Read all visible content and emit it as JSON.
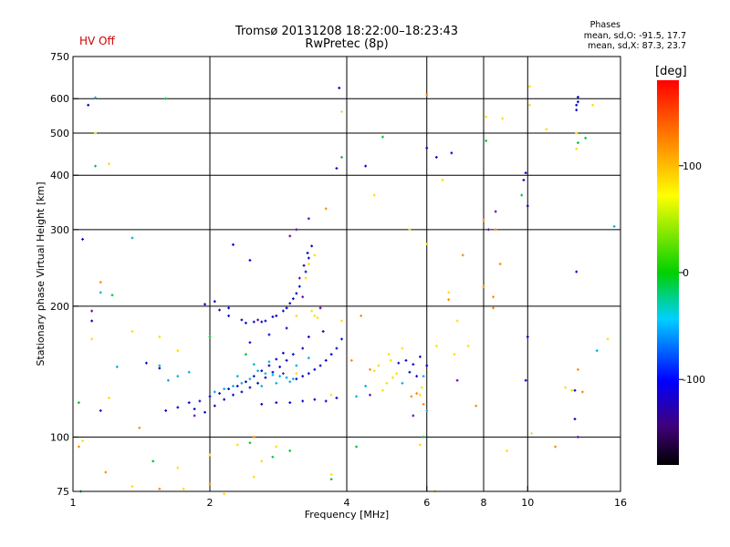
{
  "header": {
    "title_line1": "Tromsø 20131208 18:22:00–18:23:43",
    "title_line2": "RwPretec (8p)",
    "hv_status": "HV Off",
    "hv_color": "#d00000",
    "stats_heading": "Phases",
    "stats_line1": "mean, sd,O: -91.5, 17.7",
    "stats_line2": "mean, sd,X:  87.3, 23.7"
  },
  "colorbar": {
    "title": "[deg]",
    "ticks": [
      "100",
      "0",
      "-100"
    ],
    "tick_values": [
      100,
      0,
      -100
    ],
    "range": [
      -180,
      180
    ]
  },
  "chart_data": {
    "type": "scatter",
    "xlabel": "Frequency [MHz]",
    "ylabel": "Stationary phase Virtual Height [km]",
    "x_scale": "log",
    "y_scale": "log",
    "xlim": [
      1,
      16
    ],
    "ylim": [
      75,
      750
    ],
    "x_ticks": [
      "1",
      "2",
      "4",
      "6",
      "8",
      "10",
      "16"
    ],
    "x_tick_values": [
      1,
      2,
      4,
      6,
      8,
      10,
      16
    ],
    "y_ticks": [
      "75",
      "100",
      "200",
      "300",
      "400",
      "500",
      "600",
      "750"
    ],
    "y_tick_values": [
      75,
      100,
      200,
      300,
      400,
      500,
      600,
      750
    ],
    "grid": true,
    "series": [
      {
        "points": [
          [
            1.85,
            116
          ],
          [
            1.95,
            114
          ],
          [
            2.05,
            118
          ],
          [
            2.15,
            122
          ],
          [
            2.25,
            125
          ],
          [
            2.35,
            127
          ],
          [
            2.45,
            130
          ],
          [
            2.55,
            133
          ],
          [
            2.65,
            137
          ],
          [
            2.75,
            141
          ],
          [
            2.85,
            145
          ],
          [
            2.95,
            150
          ],
          [
            3.05,
            155
          ],
          [
            3.2,
            160
          ],
          [
            1.6,
            115
          ],
          [
            1.7,
            117
          ],
          [
            1.8,
            120
          ],
          [
            1.9,
            121
          ],
          [
            2.0,
            124
          ],
          [
            2.1,
            126
          ],
          [
            2.2,
            129
          ],
          [
            2.3,
            131
          ],
          [
            2.4,
            134
          ],
          [
            2.5,
            138
          ],
          [
            2.6,
            142
          ],
          [
            2.7,
            146
          ],
          [
            2.8,
            151
          ],
          [
            2.9,
            156
          ],
          [
            2.05,
            205
          ],
          [
            2.1,
            196
          ],
          [
            2.2,
            190
          ],
          [
            2.35,
            186
          ],
          [
            2.5,
            184
          ],
          [
            2.65,
            185
          ],
          [
            2.8,
            190
          ],
          [
            2.95,
            198
          ],
          [
            3.05,
            208
          ],
          [
            3.15,
            222
          ],
          [
            3.25,
            240
          ],
          [
            3.3,
            258
          ],
          [
            3.35,
            275
          ],
          [
            3.28,
            265
          ],
          [
            3.22,
            248
          ],
          [
            2.2,
            198
          ],
          [
            2.4,
            183
          ],
          [
            2.6,
            184
          ],
          [
            2.75,
            189
          ],
          [
            2.9,
            195
          ],
          [
            3.0,
            203
          ],
          [
            3.1,
            214
          ],
          [
            3.6,
            150
          ],
          [
            3.7,
            155
          ],
          [
            3.8,
            160
          ],
          [
            3.9,
            168
          ],
          [
            3.5,
            146
          ],
          [
            3.4,
            143
          ],
          [
            3.3,
            140
          ],
          [
            3.2,
            138
          ],
          [
            3.1,
            136
          ],
          [
            3.2,
            121
          ],
          [
            3.4,
            122
          ],
          [
            3.6,
            121
          ],
          [
            3.8,
            123
          ],
          [
            3.0,
            120
          ],
          [
            2.8,
            120
          ],
          [
            2.6,
            119
          ],
          [
            5.2,
            148
          ],
          [
            5.4,
            150
          ],
          [
            5.6,
            147
          ],
          [
            5.8,
            153
          ],
          [
            6.0,
            146
          ],
          [
            5.5,
            141
          ],
          [
            5.7,
            138
          ],
          [
            2.45,
            165
          ],
          [
            2.7,
            172
          ],
          [
            2.95,
            178
          ],
          [
            3.3,
            170
          ],
          [
            3.55,
            175
          ],
          [
            1.45,
            148
          ],
          [
            1.55,
            144
          ],
          [
            2.25,
            277
          ],
          [
            2.45,
            255
          ],
          [
            1.95,
            202
          ],
          [
            3.8,
            415
          ],
          [
            3.85,
            635
          ],
          [
            4.4,
            420
          ],
          [
            9.9,
            405
          ],
          [
            9.8,
            390
          ],
          [
            12.9,
            605
          ],
          [
            12.9,
            590
          ],
          [
            12.8,
            580
          ],
          [
            12.8,
            565
          ],
          [
            12.8,
            240
          ],
          [
            12.7,
            128
          ],
          [
            12.7,
            110
          ],
          [
            10.0,
            170
          ],
          [
            9.9,
            135
          ],
          [
            10.0,
            340
          ],
          [
            6.0,
            462
          ],
          [
            6.3,
            440
          ],
          [
            6.8,
            450
          ],
          [
            1.05,
            285
          ],
          [
            1.08,
            580
          ],
          [
            1.1,
            185
          ],
          [
            1.15,
            115
          ]
        ],
        "color": "#0000cc"
      },
      {
        "points": [
          [
            2.55,
            142
          ],
          [
            2.65,
            140
          ],
          [
            2.75,
            139
          ],
          [
            2.85,
            138
          ],
          [
            2.95,
            137
          ],
          [
            3.05,
            136
          ],
          [
            2.45,
            136
          ],
          [
            2.35,
            133
          ],
          [
            2.25,
            131
          ],
          [
            2.15,
            129
          ],
          [
            2.05,
            127
          ],
          [
            2.6,
            131
          ],
          [
            2.8,
            133
          ],
          [
            3.0,
            134
          ],
          [
            2.3,
            138
          ],
          [
            2.5,
            147
          ],
          [
            2.7,
            149
          ],
          [
            3.1,
            146
          ],
          [
            3.3,
            152
          ],
          [
            1.35,
            287
          ],
          [
            1.12,
            603
          ],
          [
            1.15,
            215
          ],
          [
            1.25,
            145
          ],
          [
            1.55,
            146
          ],
          [
            1.62,
            135
          ],
          [
            1.7,
            138
          ],
          [
            1.8,
            141
          ],
          [
            4.2,
            124
          ],
          [
            4.4,
            131
          ],
          [
            5.3,
            133
          ],
          [
            5.9,
            138
          ],
          [
            6.0,
            115
          ],
          [
            14.2,
            158
          ],
          [
            15.5,
            305
          ]
        ],
        "color": "#00aadd"
      },
      {
        "points": [
          [
            3.35,
            195
          ],
          [
            3.4,
            190
          ],
          [
            3.45,
            188
          ],
          [
            3.3,
            250
          ],
          [
            3.25,
            232
          ],
          [
            3.4,
            262
          ],
          [
            3.1,
            140
          ],
          [
            3.7,
            125
          ],
          [
            4.8,
            128
          ],
          [
            4.9,
            133
          ],
          [
            5.05,
            137
          ],
          [
            5.15,
            140
          ],
          [
            4.6,
            142
          ],
          [
            4.7,
            146
          ],
          [
            5.0,
            150
          ],
          [
            4.95,
            155
          ],
          [
            5.3,
            160
          ],
          [
            5.85,
            130
          ],
          [
            5.8,
            125
          ],
          [
            6.3,
            162
          ],
          [
            6.9,
            155
          ],
          [
            7.4,
            162
          ],
          [
            7.0,
            185
          ],
          [
            3.1,
            190
          ],
          [
            3.9,
            185
          ],
          [
            1.2,
            425
          ],
          [
            1.12,
            500
          ],
          [
            3.9,
            560
          ],
          [
            4.6,
            360
          ],
          [
            5.5,
            300
          ],
          [
            6.0,
            278
          ],
          [
            6.7,
            215
          ],
          [
            6.5,
            390
          ],
          [
            8.1,
            545
          ],
          [
            8.8,
            540
          ],
          [
            10.1,
            580
          ],
          [
            10.1,
            640
          ],
          [
            11.0,
            510
          ],
          [
            12.8,
            500
          ],
          [
            12.8,
            460
          ],
          [
            13.9,
            580
          ],
          [
            12.1,
            130
          ],
          [
            12.5,
            128
          ],
          [
            10.2,
            102
          ],
          [
            9.0,
            93
          ],
          [
            1.35,
            175
          ],
          [
            1.55,
            170
          ],
          [
            1.7,
            158
          ],
          [
            2.0,
            91
          ],
          [
            2.15,
            74
          ],
          [
            2.3,
            96
          ],
          [
            2.6,
            88
          ],
          [
            2.8,
            95
          ],
          [
            1.05,
            98
          ],
          [
            1.35,
            77
          ],
          [
            1.75,
            76
          ],
          [
            1.1,
            168
          ],
          [
            1.2,
            123
          ],
          [
            15.0,
            168
          ],
          [
            1.7,
            85
          ],
          [
            2.5,
            81
          ],
          [
            3.7,
            82
          ],
          [
            5.8,
            96
          ],
          [
            6.25,
            75
          ]
        ],
        "color": "#ffdd00"
      },
      {
        "points": [
          [
            1.15,
            227
          ],
          [
            1.03,
            95
          ],
          [
            1.18,
            83
          ],
          [
            1.55,
            76
          ],
          [
            2.0,
            78
          ],
          [
            2.5,
            100
          ],
          [
            3.6,
            335
          ],
          [
            4.1,
            150
          ],
          [
            4.3,
            190
          ],
          [
            4.5,
            143
          ],
          [
            5.55,
            124
          ],
          [
            5.7,
            126
          ],
          [
            5.9,
            119
          ],
          [
            6.0,
            612
          ],
          [
            6.7,
            207
          ],
          [
            7.2,
            262
          ],
          [
            8.0,
            222
          ],
          [
            8.4,
            198
          ],
          [
            8.4,
            210
          ],
          [
            8.7,
            250
          ],
          [
            8.0,
            315
          ],
          [
            8.5,
            300
          ],
          [
            11.5,
            95
          ],
          [
            12.9,
            143
          ],
          [
            7.7,
            118
          ],
          [
            13.2,
            127
          ],
          [
            1.4,
            105
          ]
        ],
        "color": "#ff8800"
      },
      {
        "points": [
          [
            1.03,
            120
          ],
          [
            1.04,
            75
          ],
          [
            1.12,
            420
          ],
          [
            1.22,
            212
          ],
          [
            1.6,
            600
          ],
          [
            2.45,
            97
          ],
          [
            2.75,
            90
          ],
          [
            3.0,
            93
          ],
          [
            3.7,
            80
          ],
          [
            4.2,
            95
          ],
          [
            5.9,
            100
          ],
          [
            12.9,
            475
          ],
          [
            13.4,
            487
          ],
          [
            1.5,
            88
          ],
          [
            2.4,
            155
          ],
          [
            2.0,
            170
          ],
          [
            3.9,
            440
          ],
          [
            4.8,
            490
          ],
          [
            8.1,
            480
          ],
          [
            9.7,
            360
          ]
        ],
        "color": "#00c040"
      },
      {
        "points": [
          [
            1.1,
            195
          ],
          [
            1.85,
            112
          ],
          [
            2.9,
            140
          ],
          [
            3.0,
            290
          ],
          [
            3.1,
            300
          ],
          [
            3.2,
            210
          ],
          [
            3.5,
            198
          ],
          [
            4.5,
            125
          ],
          [
            5.6,
            112
          ],
          [
            12.9,
            100
          ],
          [
            7.0,
            135
          ],
          [
            2.55,
            186
          ],
          [
            3.15,
            232
          ],
          [
            3.3,
            318
          ],
          [
            8.2,
            300
          ],
          [
            8.5,
            330
          ]
        ],
        "color": "#6600aa"
      }
    ]
  }
}
